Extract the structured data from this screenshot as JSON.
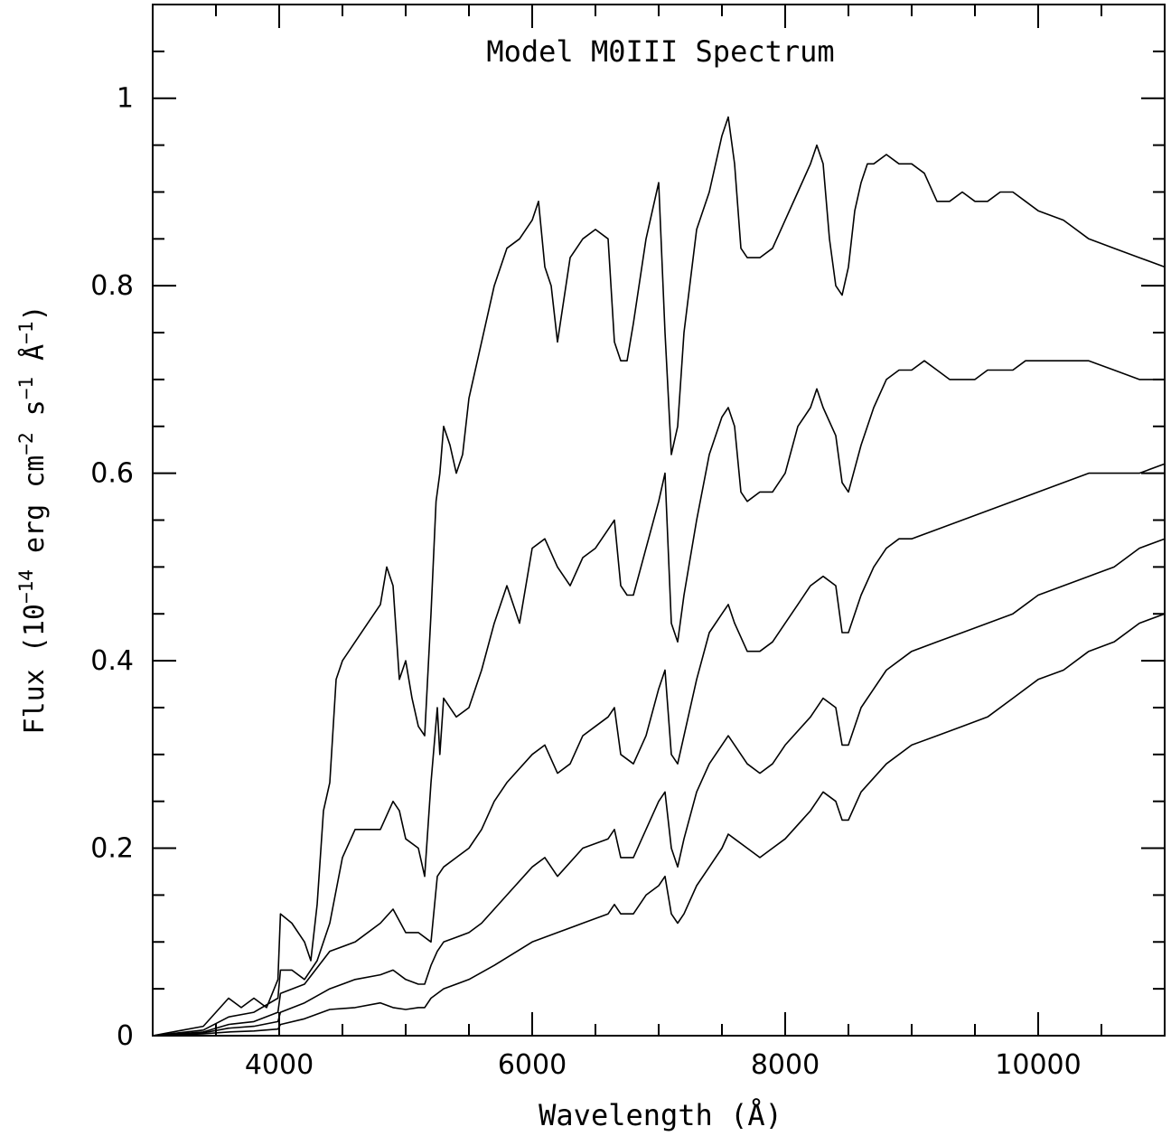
{
  "chart_data": {
    "type": "line",
    "title": "Model M0III Spectrum",
    "xlabel": "Wavelength (Å)",
    "ylabel": {
      "prefix": "Flux (10",
      "exp1": "−14",
      "mid1": " erg cm",
      "exp2": "−2",
      "mid2": " s",
      "exp3": "−1",
      "mid3": " Å",
      "exp4": "−1",
      "suffix": ")"
    },
    "xlim": [
      3000,
      11000
    ],
    "ylim": [
      0,
      1.1
    ],
    "grid": false,
    "x_ticks": [
      4000,
      6000,
      8000,
      10000
    ],
    "x_tick_labels": [
      "4000",
      "6000",
      "8000",
      "10000"
    ],
    "y_ticks": [
      0,
      0.2,
      0.4,
      0.6,
      0.8,
      1
    ],
    "y_tick_labels": [
      "0",
      "0.2",
      "0.4",
      "0.6",
      "0.8",
      "1"
    ],
    "series": [
      {
        "x": [
          3000,
          3200,
          3400,
          3600,
          3700,
          3800,
          3900,
          3990,
          4010,
          4100,
          4200,
          4250,
          4300,
          4350,
          4400,
          4450,
          4500,
          4600,
          4700,
          4800,
          4850,
          4900,
          4950,
          5000,
          5050,
          5100,
          5150,
          5200,
          5240,
          5270,
          5300,
          5350,
          5400,
          5450,
          5500,
          5600,
          5700,
          5800,
          5900,
          6000,
          6050,
          6100,
          6150,
          6200,
          6300,
          6400,
          6500,
          6600,
          6650,
          6700,
          6750,
          6800,
          6900,
          7000,
          7050,
          7100,
          7150,
          7200,
          7300,
          7400,
          7500,
          7550,
          7600,
          7650,
          7700,
          7800,
          7900,
          8000,
          8100,
          8200,
          8250,
          8300,
          8350,
          8400,
          8450,
          8500,
          8550,
          8600,
          8650,
          8700,
          8800,
          8900,
          9000,
          9100,
          9200,
          9300,
          9400,
          9500,
          9600,
          9700,
          9800,
          9900,
          10000,
          10200,
          10400,
          10600,
          10800,
          11000
        ],
        "y": [
          0.0,
          0.005,
          0.01,
          0.04,
          0.03,
          0.04,
          0.03,
          0.06,
          0.13,
          0.12,
          0.1,
          0.08,
          0.14,
          0.24,
          0.27,
          0.38,
          0.4,
          0.42,
          0.44,
          0.46,
          0.5,
          0.48,
          0.38,
          0.4,
          0.36,
          0.33,
          0.32,
          0.45,
          0.57,
          0.6,
          0.65,
          0.63,
          0.6,
          0.62,
          0.68,
          0.74,
          0.8,
          0.84,
          0.85,
          0.87,
          0.89,
          0.82,
          0.8,
          0.74,
          0.83,
          0.85,
          0.86,
          0.85,
          0.74,
          0.72,
          0.72,
          0.76,
          0.85,
          0.91,
          0.75,
          0.62,
          0.65,
          0.75,
          0.86,
          0.9,
          0.96,
          0.98,
          0.93,
          0.84,
          0.83,
          0.83,
          0.84,
          0.87,
          0.9,
          0.93,
          0.95,
          0.93,
          0.85,
          0.8,
          0.79,
          0.82,
          0.88,
          0.91,
          0.93,
          0.93,
          0.94,
          0.93,
          0.93,
          0.92,
          0.89,
          0.89,
          0.9,
          0.89,
          0.89,
          0.9,
          0.9,
          0.89,
          0.88,
          0.87,
          0.85,
          0.84,
          0.83,
          0.82
        ]
      },
      {
        "x": [
          3000,
          3200,
          3400,
          3600,
          3800,
          3990,
          4010,
          4100,
          4200,
          4300,
          4400,
          4500,
          4600,
          4700,
          4800,
          4900,
          4950,
          5000,
          5100,
          5150,
          5200,
          5250,
          5270,
          5300,
          5400,
          5500,
          5600,
          5700,
          5800,
          5900,
          6000,
          6100,
          6200,
          6300,
          6400,
          6500,
          6600,
          6650,
          6700,
          6750,
          6800,
          6900,
          7000,
          7050,
          7100,
          7150,
          7200,
          7300,
          7400,
          7500,
          7550,
          7600,
          7650,
          7700,
          7800,
          7900,
          8000,
          8100,
          8200,
          8250,
          8300,
          8400,
          8450,
          8500,
          8600,
          8700,
          8800,
          8900,
          9000,
          9100,
          9200,
          9300,
          9400,
          9500,
          9600,
          9700,
          9800,
          9900,
          10000,
          10200,
          10400,
          10600,
          10800,
          11000
        ],
        "y": [
          0.0,
          0.003,
          0.006,
          0.02,
          0.025,
          0.04,
          0.07,
          0.07,
          0.06,
          0.08,
          0.12,
          0.19,
          0.22,
          0.22,
          0.22,
          0.25,
          0.24,
          0.21,
          0.2,
          0.17,
          0.27,
          0.35,
          0.3,
          0.36,
          0.34,
          0.35,
          0.39,
          0.44,
          0.48,
          0.44,
          0.52,
          0.53,
          0.5,
          0.48,
          0.51,
          0.52,
          0.54,
          0.55,
          0.48,
          0.47,
          0.47,
          0.52,
          0.57,
          0.6,
          0.44,
          0.42,
          0.47,
          0.55,
          0.62,
          0.66,
          0.67,
          0.65,
          0.58,
          0.57,
          0.58,
          0.58,
          0.6,
          0.65,
          0.67,
          0.69,
          0.67,
          0.64,
          0.59,
          0.58,
          0.63,
          0.67,
          0.7,
          0.71,
          0.71,
          0.72,
          0.71,
          0.7,
          0.7,
          0.7,
          0.71,
          0.71,
          0.71,
          0.72,
          0.72,
          0.72,
          0.72,
          0.71,
          0.7,
          0.7
        ]
      },
      {
        "x": [
          3000,
          3200,
          3400,
          3600,
          3800,
          3990,
          4010,
          4200,
          4400,
          4600,
          4800,
          4900,
          5000,
          5100,
          5200,
          5250,
          5300,
          5400,
          5500,
          5600,
          5700,
          5800,
          6000,
          6100,
          6200,
          6300,
          6400,
          6500,
          6600,
          6650,
          6700,
          6800,
          6900,
          7000,
          7050,
          7100,
          7150,
          7200,
          7300,
          7400,
          7500,
          7550,
          7600,
          7700,
          7800,
          7900,
          8000,
          8100,
          8200,
          8300,
          8400,
          8450,
          8500,
          8600,
          8700,
          8800,
          8900,
          9000,
          9200,
          9400,
          9600,
          9800,
          10000,
          10200,
          10400,
          10600,
          10800,
          11000
        ],
        "y": [
          0.0,
          0.002,
          0.004,
          0.012,
          0.015,
          0.025,
          0.045,
          0.055,
          0.09,
          0.1,
          0.12,
          0.135,
          0.11,
          0.11,
          0.1,
          0.17,
          0.18,
          0.19,
          0.2,
          0.22,
          0.25,
          0.27,
          0.3,
          0.31,
          0.28,
          0.29,
          0.32,
          0.33,
          0.34,
          0.35,
          0.3,
          0.29,
          0.32,
          0.37,
          0.39,
          0.3,
          0.29,
          0.32,
          0.38,
          0.43,
          0.45,
          0.46,
          0.44,
          0.41,
          0.41,
          0.42,
          0.44,
          0.46,
          0.48,
          0.49,
          0.48,
          0.43,
          0.43,
          0.47,
          0.5,
          0.52,
          0.53,
          0.53,
          0.54,
          0.55,
          0.56,
          0.57,
          0.58,
          0.59,
          0.6,
          0.6,
          0.6,
          0.61
        ]
      },
      {
        "x": [
          3000,
          3200,
          3400,
          3600,
          3800,
          3990,
          4010,
          4200,
          4400,
          4600,
          4800,
          4900,
          5000,
          5100,
          5150,
          5200,
          5250,
          5300,
          5400,
          5500,
          5600,
          5800,
          6000,
          6100,
          6200,
          6400,
          6600,
          6650,
          6700,
          6800,
          6900,
          7000,
          7050,
          7100,
          7150,
          7200,
          7300,
          7400,
          7500,
          7550,
          7600,
          7700,
          7800,
          7900,
          8000,
          8200,
          8300,
          8400,
          8450,
          8500,
          8600,
          8800,
          9000,
          9200,
          9400,
          9600,
          9800,
          10000,
          10200,
          10400,
          10600,
          10800,
          11000
        ],
        "y": [
          0.0,
          0.001,
          0.003,
          0.008,
          0.01,
          0.015,
          0.025,
          0.035,
          0.05,
          0.06,
          0.065,
          0.07,
          0.06,
          0.055,
          0.055,
          0.075,
          0.09,
          0.1,
          0.105,
          0.11,
          0.12,
          0.15,
          0.18,
          0.19,
          0.17,
          0.2,
          0.21,
          0.22,
          0.19,
          0.19,
          0.22,
          0.25,
          0.26,
          0.2,
          0.18,
          0.21,
          0.26,
          0.29,
          0.31,
          0.32,
          0.31,
          0.29,
          0.28,
          0.29,
          0.31,
          0.34,
          0.36,
          0.35,
          0.31,
          0.31,
          0.35,
          0.39,
          0.41,
          0.42,
          0.43,
          0.44,
          0.45,
          0.47,
          0.48,
          0.49,
          0.5,
          0.52,
          0.53
        ]
      },
      {
        "x": [
          3000,
          3200,
          3400,
          3600,
          3800,
          3990,
          4010,
          4200,
          4400,
          4600,
          4800,
          4900,
          5000,
          5100,
          5150,
          5200,
          5300,
          5500,
          5700,
          6000,
          6200,
          6400,
          6600,
          6650,
          6700,
          6800,
          6900,
          7000,
          7050,
          7100,
          7150,
          7200,
          7300,
          7400,
          7500,
          7550,
          7600,
          7700,
          7800,
          7900,
          8000,
          8200,
          8300,
          8400,
          8450,
          8500,
          8600,
          8800,
          9000,
          9200,
          9400,
          9600,
          9800,
          10000,
          10200,
          10400,
          10600,
          10800,
          11000
        ],
        "y": [
          0.0,
          0.001,
          0.002,
          0.004,
          0.005,
          0.007,
          0.012,
          0.018,
          0.028,
          0.03,
          0.035,
          0.03,
          0.028,
          0.03,
          0.03,
          0.04,
          0.05,
          0.06,
          0.075,
          0.1,
          0.11,
          0.12,
          0.13,
          0.14,
          0.13,
          0.13,
          0.15,
          0.16,
          0.17,
          0.13,
          0.12,
          0.13,
          0.16,
          0.18,
          0.2,
          0.215,
          0.21,
          0.2,
          0.19,
          0.2,
          0.21,
          0.24,
          0.26,
          0.25,
          0.23,
          0.23,
          0.26,
          0.29,
          0.31,
          0.32,
          0.33,
          0.34,
          0.36,
          0.38,
          0.39,
          0.41,
          0.42,
          0.44,
          0.45
        ]
      }
    ]
  }
}
